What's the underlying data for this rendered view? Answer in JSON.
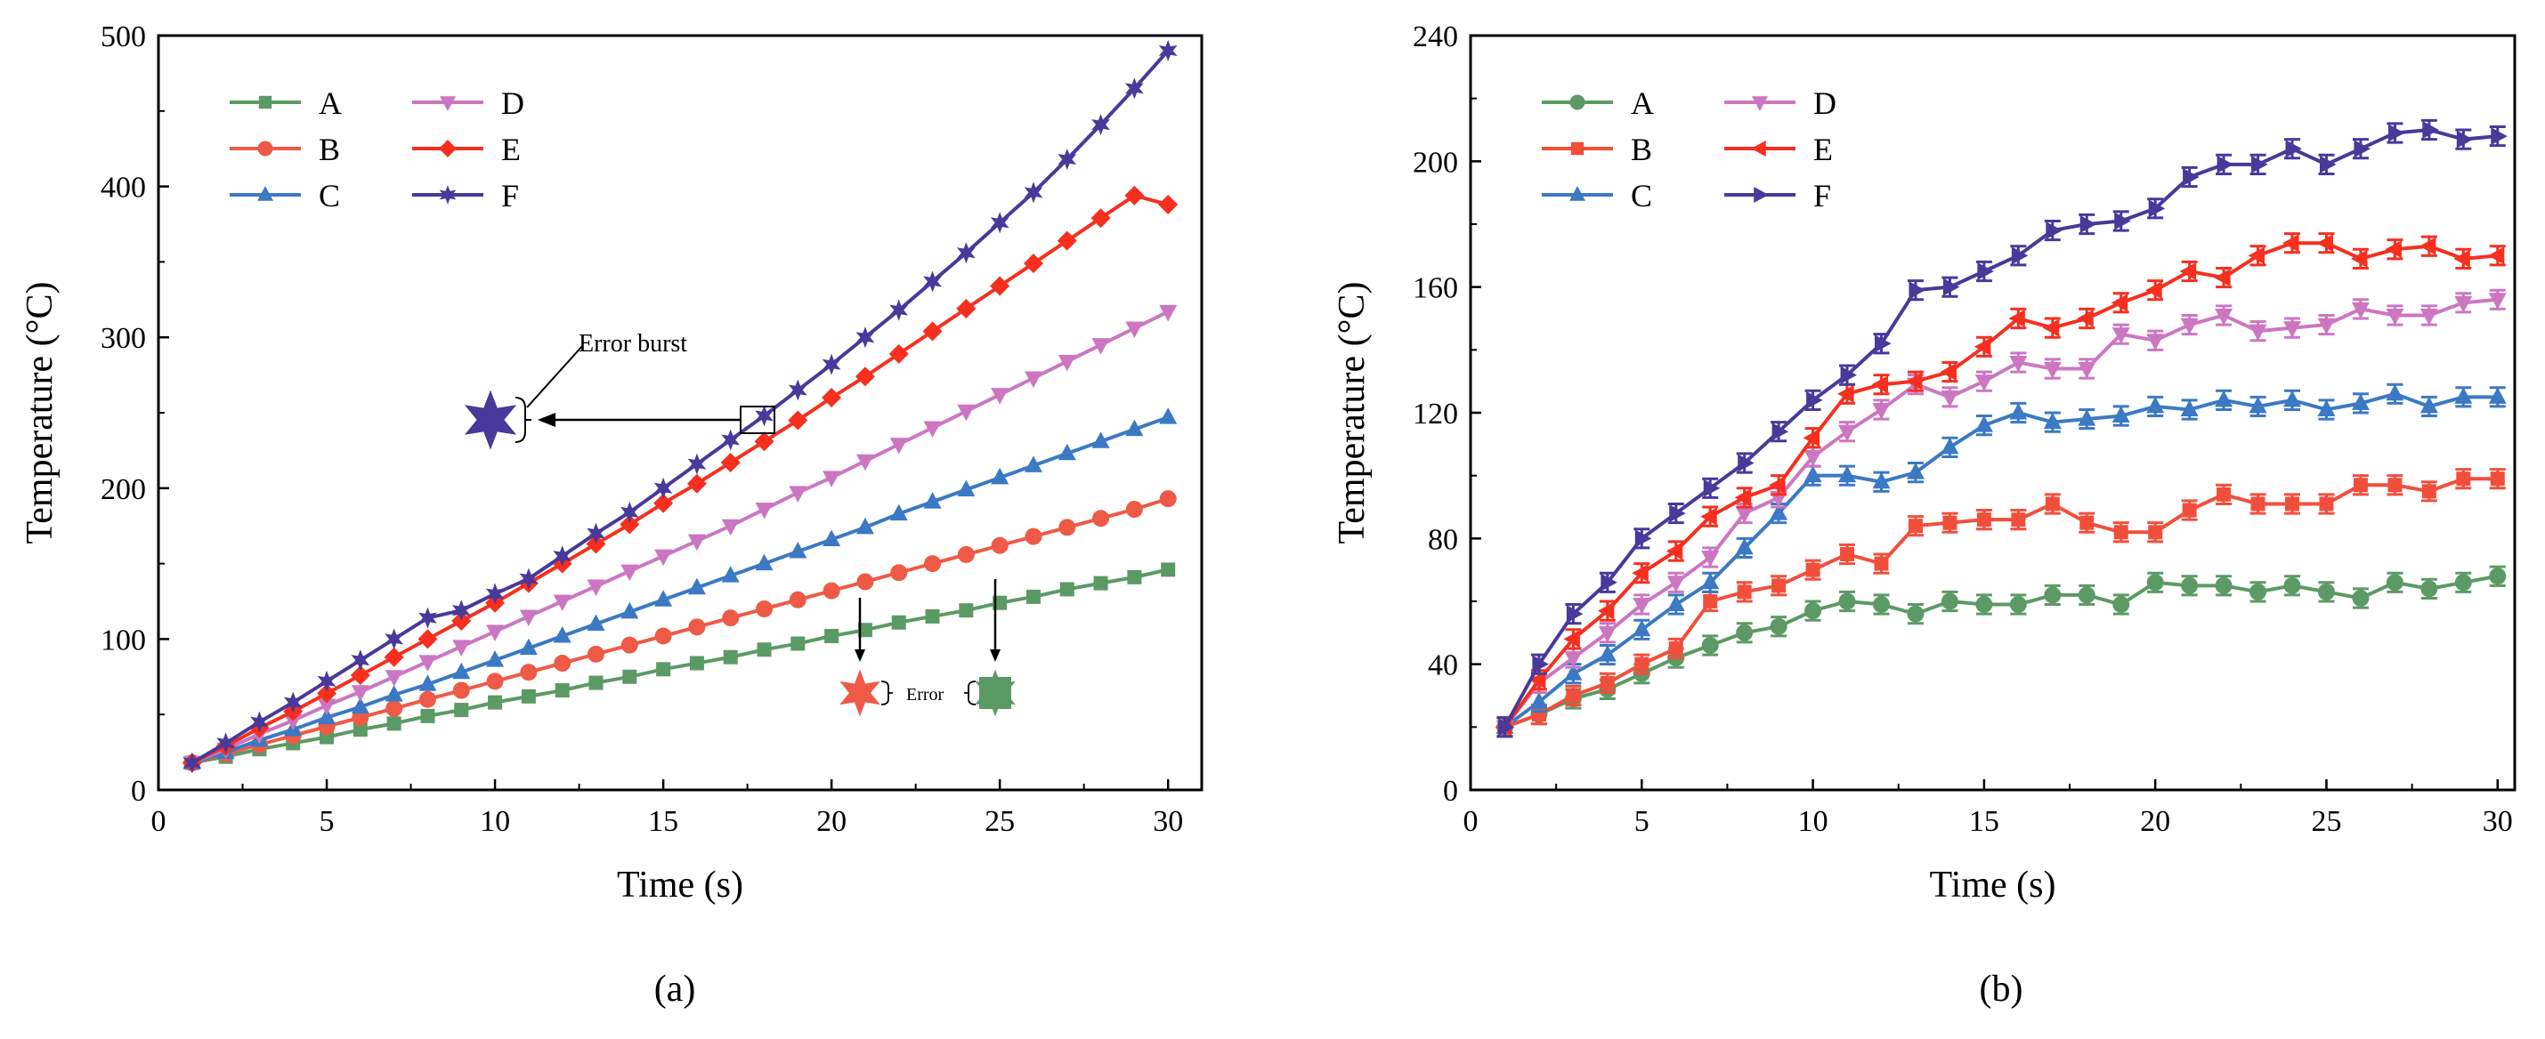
{
  "figure": {
    "panel_labels": [
      "(a)",
      "(b)"
    ]
  },
  "chart_data": [
    {
      "id": "a",
      "type": "line",
      "title": "",
      "xlabel": "Time (s)",
      "ylabel": "Temperature (°C)",
      "xlim": [
        0,
        31
      ],
      "ylim": [
        0,
        500
      ],
      "xticks": [
        0,
        5,
        10,
        15,
        20,
        25,
        30
      ],
      "yticks": [
        0,
        100,
        200,
        300,
        400,
        500
      ],
      "legend": "top-left, two columns",
      "error_bars": false,
      "series": [
        {
          "name": "A",
          "color": "#5b9a64",
          "marker": "square",
          "x": [
            1,
            2,
            3,
            4,
            5,
            6,
            7,
            8,
            9,
            10,
            11,
            12,
            13,
            14,
            15,
            16,
            17,
            18,
            19,
            20,
            21,
            22,
            23,
            24,
            25,
            26,
            27,
            28,
            29,
            30
          ],
          "y": [
            18,
            22,
            27,
            31,
            35,
            40,
            44,
            49,
            53,
            58,
            62,
            66,
            71,
            75,
            80,
            84,
            88,
            93,
            97,
            102,
            106,
            111,
            115,
            119,
            124,
            128,
            133,
            137,
            141,
            146
          ]
        },
        {
          "name": "B",
          "color": "#ee5a45",
          "marker": "circle",
          "x": [
            1,
            2,
            3,
            4,
            5,
            6,
            7,
            8,
            9,
            10,
            11,
            12,
            13,
            14,
            15,
            16,
            17,
            18,
            19,
            20,
            21,
            22,
            23,
            24,
            25,
            26,
            27,
            28,
            29,
            30
          ],
          "y": [
            18,
            24,
            30,
            36,
            42,
            48,
            54,
            60,
            66,
            72,
            78,
            84,
            90,
            96,
            102,
            108,
            114,
            120,
            126,
            132,
            138,
            144,
            150,
            156,
            162,
            168,
            174,
            180,
            186,
            193
          ]
        },
        {
          "name": "C",
          "color": "#3b79c4",
          "marker": "triangle-up",
          "x": [
            1,
            2,
            3,
            4,
            5,
            6,
            7,
            8,
            9,
            10,
            11,
            12,
            13,
            14,
            15,
            16,
            17,
            18,
            19,
            20,
            21,
            22,
            23,
            24,
            25,
            26,
            27,
            28,
            29,
            30
          ],
          "y": [
            18,
            25,
            33,
            40,
            48,
            55,
            63,
            70,
            78,
            86,
            94,
            102,
            110,
            118,
            126,
            134,
            142,
            150,
            158,
            166,
            174,
            183,
            191,
            199,
            207,
            215,
            223,
            231,
            239,
            247
          ]
        },
        {
          "name": "D",
          "color": "#cc76c2",
          "marker": "triangle-down",
          "x": [
            1,
            2,
            3,
            4,
            5,
            6,
            7,
            8,
            9,
            10,
            11,
            12,
            13,
            14,
            15,
            16,
            17,
            18,
            19,
            20,
            21,
            22,
            23,
            24,
            25,
            26,
            27,
            28,
            29,
            30
          ],
          "y": [
            18,
            27,
            37,
            46,
            56,
            65,
            75,
            85,
            95,
            105,
            115,
            125,
            135,
            145,
            155,
            165,
            175,
            186,
            197,
            207,
            218,
            229,
            240,
            251,
            262,
            273,
            284,
            295,
            306,
            317
          ]
        },
        {
          "name": "E",
          "color": "#f62f1f",
          "marker": "diamond",
          "x": [
            1,
            2,
            3,
            4,
            5,
            6,
            7,
            8,
            9,
            10,
            11,
            12,
            13,
            14,
            15,
            16,
            17,
            18,
            19,
            20,
            21,
            22,
            23,
            24,
            25,
            26,
            27,
            28,
            29,
            30
          ],
          "y": [
            18,
            29,
            41,
            52,
            64,
            76,
            88,
            100,
            112,
            124,
            137,
            150,
            163,
            176,
            190,
            203,
            217,
            231,
            245,
            260,
            274,
            289,
            304,
            319,
            334,
            349,
            364,
            379,
            394,
            388
          ]
        },
        {
          "name": "F",
          "color": "#48399a",
          "marker": "star",
          "x": [
            1,
            2,
            3,
            4,
            5,
            6,
            7,
            8,
            9,
            10,
            11,
            12,
            13,
            14,
            15,
            16,
            17,
            18,
            19,
            20,
            21,
            22,
            23,
            24,
            25,
            26,
            27,
            28,
            29,
            30
          ],
          "y": [
            18,
            31,
            45,
            58,
            72,
            86,
            100,
            114,
            119,
            130,
            140,
            155,
            170,
            184,
            200,
            216,
            232,
            248,
            265,
            282,
            300,
            318,
            337,
            356,
            376,
            396,
            418,
            441,
            465,
            490
          ]
        }
      ],
      "annotations": [
        {
          "text": "Error burst"
        },
        {
          "text": "Error"
        }
      ]
    },
    {
      "id": "b",
      "type": "line",
      "title": "",
      "xlabel": "Time (s)",
      "ylabel": "Temperature (°C)",
      "xlim": [
        0,
        30.5
      ],
      "ylim": [
        0,
        240
      ],
      "xticks": [
        0,
        5,
        10,
        15,
        20,
        25,
        30
      ],
      "yticks": [
        0,
        40,
        80,
        120,
        160,
        200,
        240
      ],
      "legend": "top-left, two columns",
      "error_bars": true,
      "error_half_width": 3,
      "series": [
        {
          "name": "A",
          "color": "#5b9a64",
          "marker": "circle",
          "x": [
            1,
            2,
            3,
            4,
            5,
            6,
            7,
            8,
            9,
            10,
            11,
            12,
            13,
            14,
            15,
            16,
            17,
            18,
            19,
            20,
            21,
            22,
            23,
            24,
            25,
            26,
            27,
            28,
            29,
            30
          ],
          "y": [
            20,
            24,
            29,
            32,
            37,
            42,
            46,
            50,
            52,
            57,
            60,
            59,
            56,
            60,
            59,
            59,
            62,
            62,
            59,
            66,
            65,
            65,
            63,
            65,
            63,
            61,
            66,
            64,
            66,
            68
          ]
        },
        {
          "name": "B",
          "color": "#f14f3c",
          "marker": "square",
          "x": [
            1,
            2,
            3,
            4,
            5,
            6,
            7,
            8,
            9,
            10,
            11,
            12,
            13,
            14,
            15,
            16,
            17,
            18,
            19,
            20,
            21,
            22,
            23,
            24,
            25,
            26,
            27,
            28,
            29,
            30
          ],
          "y": [
            20,
            24,
            30,
            34,
            40,
            45,
            60,
            63,
            65,
            70,
            75,
            72,
            84,
            85,
            86,
            86,
            91,
            85,
            82,
            82,
            89,
            94,
            91,
            91,
            91,
            97,
            97,
            95,
            99,
            99
          ]
        },
        {
          "name": "C",
          "color": "#3b79c4",
          "marker": "triangle-up",
          "x": [
            1,
            2,
            3,
            4,
            5,
            6,
            7,
            8,
            9,
            10,
            11,
            12,
            13,
            14,
            15,
            16,
            17,
            18,
            19,
            20,
            21,
            22,
            23,
            24,
            25,
            26,
            27,
            28,
            29,
            30
          ],
          "y": [
            20,
            28,
            37,
            43,
            51,
            59,
            66,
            77,
            88,
            100,
            100,
            98,
            101,
            109,
            116,
            120,
            117,
            118,
            119,
            122,
            121,
            124,
            122,
            124,
            121,
            123,
            126,
            122,
            125,
            125
          ]
        },
        {
          "name": "D",
          "color": "#cc76c2",
          "marker": "triangle-down",
          "x": [
            1,
            2,
            3,
            4,
            5,
            6,
            7,
            8,
            9,
            10,
            11,
            12,
            13,
            14,
            15,
            16,
            17,
            18,
            19,
            20,
            21,
            22,
            23,
            24,
            25,
            26,
            27,
            28,
            29,
            30
          ],
          "y": [
            20,
            34,
            42,
            50,
            59,
            66,
            74,
            88,
            93,
            106,
            114,
            121,
            129,
            125,
            130,
            136,
            134,
            134,
            145,
            143,
            148,
            151,
            146,
            147,
            148,
            153,
            151,
            151,
            155,
            156
          ]
        },
        {
          "name": "E",
          "color": "#f62f1f",
          "marker": "triangle-left",
          "x": [
            1,
            2,
            3,
            4,
            5,
            6,
            7,
            8,
            9,
            10,
            11,
            12,
            13,
            14,
            15,
            16,
            17,
            18,
            19,
            20,
            21,
            22,
            23,
            24,
            25,
            26,
            27,
            28,
            29,
            30
          ],
          "y": [
            20,
            35,
            48,
            57,
            69,
            76,
            87,
            93,
            97,
            112,
            126,
            129,
            130,
            133,
            141,
            150,
            147,
            150,
            155,
            159,
            165,
            163,
            170,
            174,
            174,
            169,
            172,
            173,
            169,
            170
          ]
        },
        {
          "name": "F",
          "color": "#48399a",
          "marker": "triangle-right",
          "x": [
            1,
            2,
            3,
            4,
            5,
            6,
            7,
            8,
            9,
            10,
            11,
            12,
            13,
            14,
            15,
            16,
            17,
            18,
            19,
            20,
            21,
            22,
            23,
            24,
            25,
            26,
            27,
            28,
            29,
            30
          ],
          "y": [
            20,
            40,
            56,
            66,
            80,
            88,
            96,
            104,
            114,
            124,
            132,
            142,
            159,
            160,
            165,
            170,
            178,
            180,
            181,
            185,
            195,
            199,
            199,
            204,
            199,
            204,
            209,
            210,
            207,
            208
          ]
        }
      ]
    }
  ]
}
